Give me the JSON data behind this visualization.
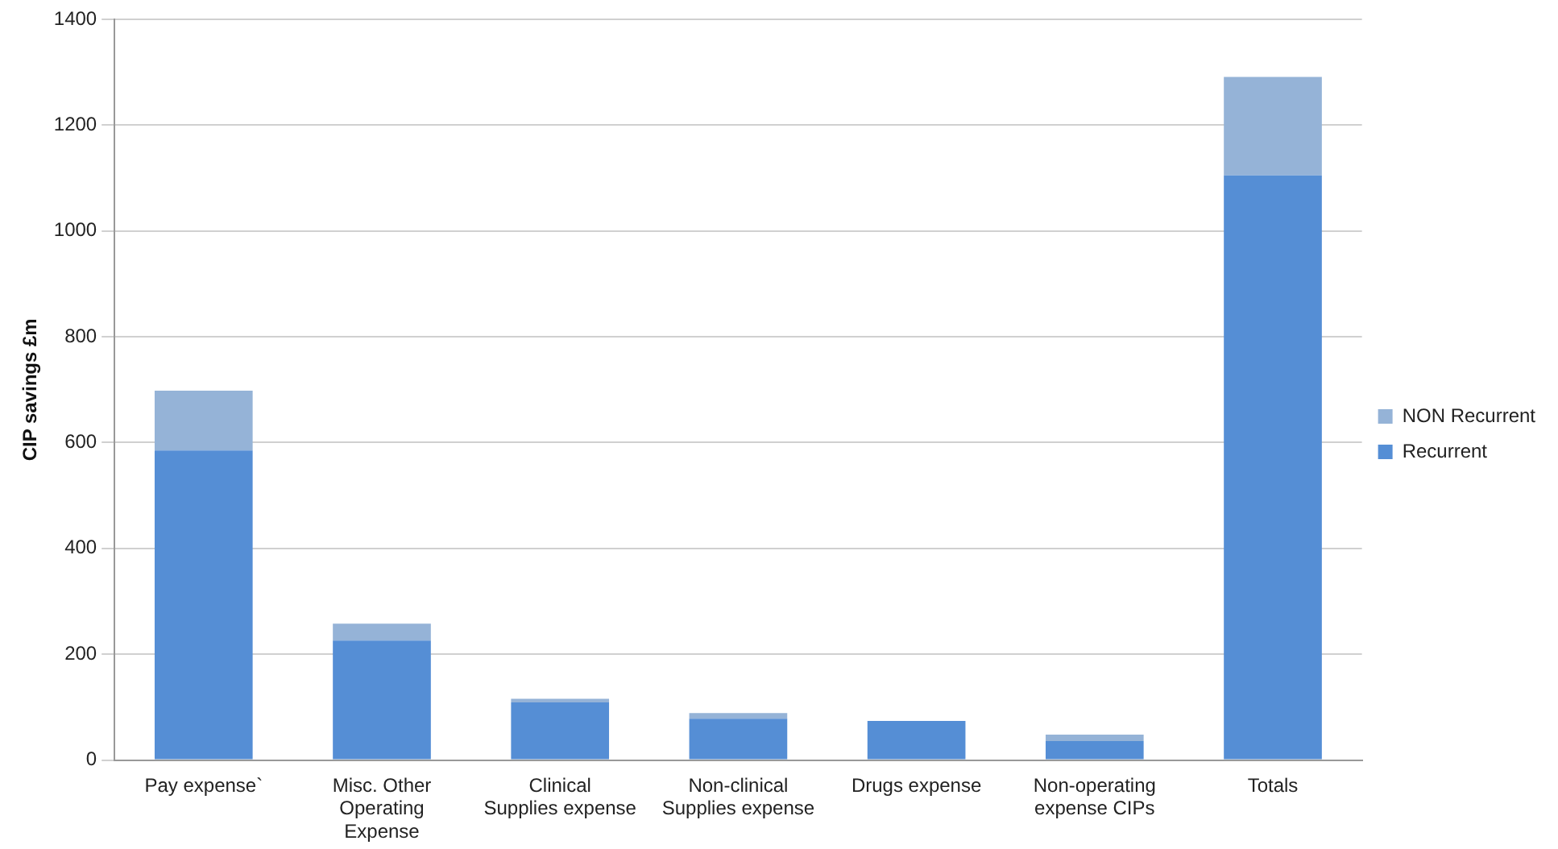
{
  "chart_data": {
    "type": "bar",
    "stacked": true,
    "ylabel": "CIP savings £m",
    "categories": [
      "Pay expense`",
      "Misc. Other Operating Expense",
      "Clinical Supplies expense",
      "Non-clinical Supplies expense",
      "Drugs expense",
      "Non-operating expense CIPs",
      "Totals"
    ],
    "series": [
      {
        "name": "Recurrent",
        "color": "#558ed5",
        "values": [
          585,
          226,
          109,
          78,
          74,
          36,
          1105
        ]
      },
      {
        "name": "NON Recurrent",
        "color": "#95b3d7",
        "values": [
          113,
          32,
          7,
          11,
          0,
          12,
          186
        ]
      }
    ],
    "ylim": [
      0,
      1400
    ],
    "yticks": [
      0,
      200,
      400,
      600,
      800,
      1000,
      1200,
      1400
    ],
    "grid": "y",
    "legend": "right"
  }
}
